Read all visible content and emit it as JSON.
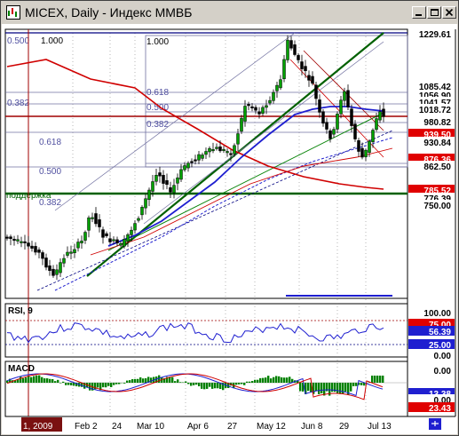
{
  "window": {
    "title": "MICEX, Daily - Индекс ММВБ",
    "minimize_icon": "minimize-icon",
    "maximize_icon": "maximize-icon",
    "close_icon": "close-icon"
  },
  "price_panel": {
    "fib_left": [
      "0.500",
      "0.382"
    ],
    "fib_levels_left": [
      "1.000",
      "0.618",
      "0.500",
      "0.382"
    ],
    "fib_levels_mid": [
      "1.000",
      "0.618",
      "0.500",
      "0.382"
    ],
    "support_label": "поддержка",
    "price_labels": [
      {
        "text": "1229.61",
        "bg": "#ffffff",
        "fg": "#000000"
      },
      {
        "text": "1085.42",
        "bg": "#ffffff",
        "fg": "#000000"
      },
      {
        "text": "1056.90",
        "bg": "#ffffff",
        "fg": "#000000"
      },
      {
        "text": "1041.57",
        "bg": "#ffffff",
        "fg": "#000000"
      },
      {
        "text": "1018.72",
        "bg": "#ffffff",
        "fg": "#000000"
      },
      {
        "text": "980.82",
        "bg": "#ffffff",
        "fg": "#000000"
      },
      {
        "text": "939.50",
        "bg": "#e00000",
        "fg": "#ffffff"
      },
      {
        "text": "930.84",
        "bg": "#ffffff",
        "fg": "#000000"
      },
      {
        "text": "876.36",
        "bg": "#e00000",
        "fg": "#ffffff"
      },
      {
        "text": "862.50",
        "bg": "#ffffff",
        "fg": "#000000"
      },
      {
        "text": "785.52",
        "bg": "#e00000",
        "fg": "#ffffff"
      },
      {
        "text": "776.39",
        "bg": "#ffffff",
        "fg": "#000000"
      },
      {
        "text": "750.00",
        "bg": "#ffffff",
        "fg": "#000000"
      }
    ]
  },
  "rsi_panel": {
    "title": "RSI, 9",
    "labels": [
      {
        "text": "100.00",
        "bg": "#ffffff",
        "fg": "#000000"
      },
      {
        "text": "75.00",
        "bg": "#e00000",
        "fg": "#ffffff"
      },
      {
        "text": "56.39",
        "bg": "#1f1fd0",
        "fg": "#ffffff"
      },
      {
        "text": "25.00",
        "bg": "#1f1fd0",
        "fg": "#ffffff"
      },
      {
        "text": "0.00",
        "bg": "#ffffff",
        "fg": "#000000"
      }
    ]
  },
  "macd_panel": {
    "title": "MACD",
    "labels": [
      {
        "text": "0.00",
        "bg": "#ffffff",
        "fg": "#000000"
      },
      {
        "text": "13.38",
        "bg": "#1f1fd0",
        "fg": "#ffffff"
      },
      {
        "text": "0.00",
        "bg": "#ffffff",
        "fg": "#000000"
      },
      {
        "text": "23.43",
        "bg": "#e00000",
        "fg": "#ffffff"
      }
    ]
  },
  "date_axis": {
    "first_label": "1, 2009",
    "labels": [
      "Feb 2",
      "24",
      "Mar 10",
      "Apr 6",
      "27",
      "May 12",
      "Jun 8",
      "29",
      "Jul 13"
    ]
  },
  "colors": {
    "bg": "#ffffff",
    "chart_border": "#000000",
    "ma_red": "#d00000",
    "ma_blue": "#1f1fd0",
    "trend_green": "#008000",
    "candle_up": "#008000",
    "candle_down": "#000000",
    "fib": "#7070a0"
  }
}
